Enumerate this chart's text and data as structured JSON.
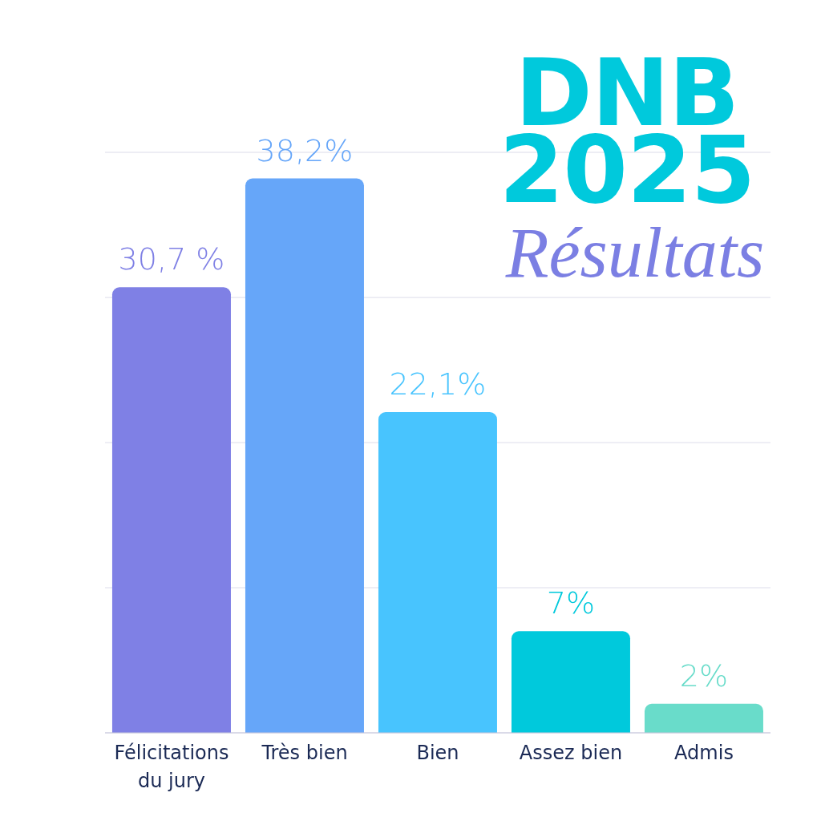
{
  "chart_data": {
    "type": "bar",
    "title": "DNB 2025",
    "subtitle": "Résultats",
    "categories": [
      "Félicitations du jury",
      "Très bien",
      "Bien",
      "Assez bien",
      "Admis"
    ],
    "values": [
      30.7,
      38.2,
      22.1,
      7,
      2
    ],
    "colors": [
      "#7f80e5",
      "#66a6f9",
      "#48c4fe",
      "#00c9dc",
      "#69dcca"
    ],
    "value_labels": [
      "30,7 %",
      "38,2%",
      "22,1%",
      "7%",
      "2%"
    ],
    "ylim": [
      0,
      40
    ],
    "yticks": [
      {
        "value": 0,
        "label": null
      },
      {
        "value": 10,
        "label": null
      },
      {
        "value": 20,
        "label": null
      },
      {
        "value": 30,
        "label": null
      },
      {
        "value": 40,
        "label": null
      }
    ],
    "grid": "y"
  }
}
